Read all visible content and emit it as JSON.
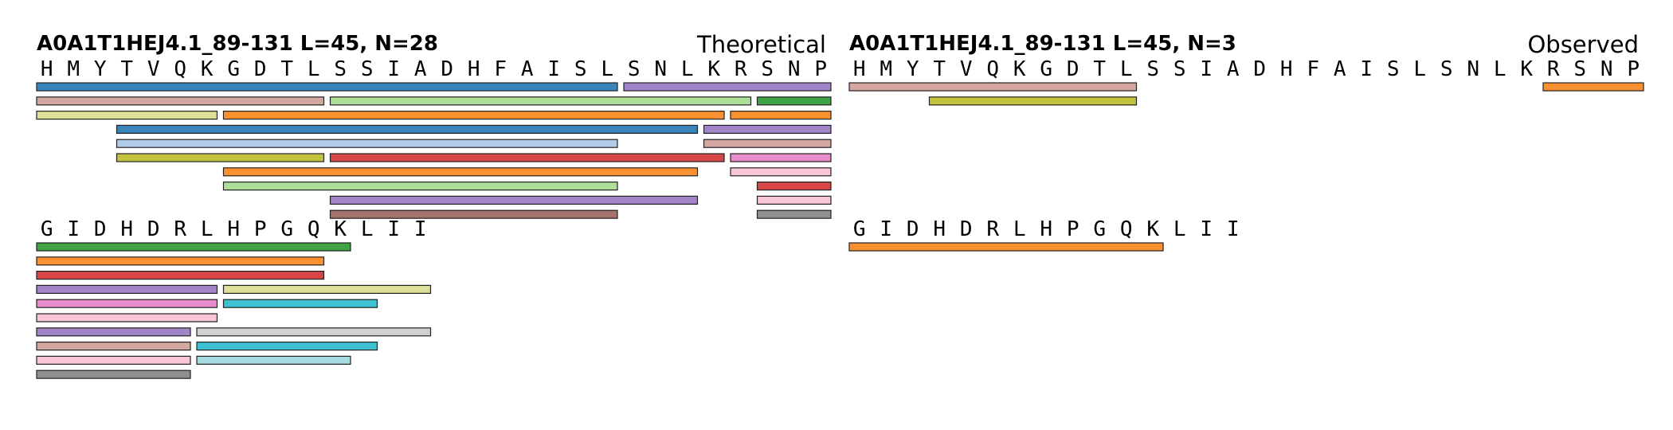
{
  "panels": [
    {
      "id": "theoretical",
      "title": "A0A1T1HEJ4.1_89-131  L=45, N=28",
      "label": "Theoretical",
      "rows": [
        {
          "residues": [
            "H",
            "M",
            "Y",
            "T",
            "V",
            "Q",
            "K",
            "G",
            "D",
            "T",
            "L",
            "S",
            "S",
            "I",
            "A",
            "D",
            "H",
            "F",
            "A",
            "I",
            "S",
            "L",
            "S",
            "N",
            "L",
            "K",
            "R",
            "S",
            "N",
            "P"
          ],
          "peptides": [
            {
              "start": 0,
              "end": 21,
              "lane": 0,
              "color": "#3a84bc"
            },
            {
              "start": 22,
              "end": 29,
              "lane": 0,
              "color": "#a285c8"
            },
            {
              "start": 0,
              "end": 10,
              "lane": 1,
              "color": "#d4a8a0"
            },
            {
              "start": 11,
              "end": 26,
              "lane": 1,
              "color": "#aedf98"
            },
            {
              "start": 27,
              "end": 29,
              "lane": 1,
              "color": "#3fa244"
            },
            {
              "start": 0,
              "end": 6,
              "lane": 2,
              "color": "#dde099"
            },
            {
              "start": 7,
              "end": 25,
              "lane": 2,
              "color": "#f99130"
            },
            {
              "start": 26,
              "end": 29,
              "lane": 2,
              "color": "#f99130"
            },
            {
              "start": 3,
              "end": 24,
              "lane": 3,
              "color": "#3a84bc"
            },
            {
              "start": 25,
              "end": 29,
              "lane": 3,
              "color": "#a285c8"
            },
            {
              "start": 3,
              "end": 21,
              "lane": 4,
              "color": "#b2cbe9"
            },
            {
              "start": 25,
              "end": 29,
              "lane": 4,
              "color": "#d4a8a0"
            },
            {
              "start": 3,
              "end": 10,
              "lane": 5,
              "color": "#c2c23c"
            },
            {
              "start": 11,
              "end": 25,
              "lane": 5,
              "color": "#d64646"
            },
            {
              "start": 26,
              "end": 29,
              "lane": 5,
              "color": "#e98ccc"
            },
            {
              "start": 7,
              "end": 24,
              "lane": 6,
              "color": "#f99130"
            },
            {
              "start": 26,
              "end": 29,
              "lane": 6,
              "color": "#f8c5d9"
            },
            {
              "start": 7,
              "end": 21,
              "lane": 7,
              "color": "#aedf98"
            },
            {
              "start": 27,
              "end": 29,
              "lane": 7,
              "color": "#d64646"
            },
            {
              "start": 11,
              "end": 24,
              "lane": 8,
              "color": "#a285c8"
            },
            {
              "start": 27,
              "end": 29,
              "lane": 8,
              "color": "#f8c5d9"
            },
            {
              "start": 11,
              "end": 21,
              "lane": 9,
              "color": "#a5736b"
            },
            {
              "start": 27,
              "end": 29,
              "lane": 9,
              "color": "#8f8f8f"
            }
          ]
        },
        {
          "residues": [
            "G",
            "I",
            "D",
            "H",
            "D",
            "R",
            "L",
            "H",
            "P",
            "G",
            "Q",
            "K",
            "L",
            "I",
            "I"
          ],
          "peptides": [
            {
              "start": 0,
              "end": 11,
              "lane": 0,
              "color": "#3fa244"
            },
            {
              "start": 0,
              "end": 10,
              "lane": 1,
              "color": "#f99130"
            },
            {
              "start": 0,
              "end": 10,
              "lane": 2,
              "color": "#d64646"
            },
            {
              "start": 0,
              "end": 6,
              "lane": 3,
              "color": "#a285c8"
            },
            {
              "start": 7,
              "end": 14,
              "lane": 3,
              "color": "#dde099"
            },
            {
              "start": 0,
              "end": 6,
              "lane": 4,
              "color": "#e98ccc"
            },
            {
              "start": 7,
              "end": 12,
              "lane": 4,
              "color": "#3ec2d1"
            },
            {
              "start": 0,
              "end": 6,
              "lane": 5,
              "color": "#f8c5d9"
            },
            {
              "start": 0,
              "end": 5,
              "lane": 6,
              "color": "#a285c8"
            },
            {
              "start": 6,
              "end": 14,
              "lane": 6,
              "color": "#d0d0d0"
            },
            {
              "start": 0,
              "end": 5,
              "lane": 7,
              "color": "#d4a8a0"
            },
            {
              "start": 6,
              "end": 12,
              "lane": 7,
              "color": "#3ec2d1"
            },
            {
              "start": 0,
              "end": 5,
              "lane": 8,
              "color": "#f8c5d9"
            },
            {
              "start": 6,
              "end": 11,
              "lane": 8,
              "color": "#a8dce3"
            },
            {
              "start": 0,
              "end": 5,
              "lane": 9,
              "color": "#8f8f8f"
            }
          ]
        }
      ]
    },
    {
      "id": "observed",
      "title": "A0A1T1HEJ4.1_89-131  L=45, N=3",
      "label": "Observed",
      "rows": [
        {
          "residues": [
            "H",
            "M",
            "Y",
            "T",
            "V",
            "Q",
            "K",
            "G",
            "D",
            "T",
            "L",
            "S",
            "S",
            "I",
            "A",
            "D",
            "H",
            "F",
            "A",
            "I",
            "S",
            "L",
            "S",
            "N",
            "L",
            "K",
            "R",
            "S",
            "N",
            "P"
          ],
          "peptides": [
            {
              "start": 0,
              "end": 10,
              "lane": 0,
              "color": "#d4a8a0"
            },
            {
              "start": 26,
              "end": 29,
              "lane": 0,
              "color": "#f99130"
            },
            {
              "start": 3,
              "end": 10,
              "lane": 1,
              "color": "#c2c23c"
            }
          ]
        },
        {
          "residues": [
            "G",
            "I",
            "D",
            "H",
            "D",
            "R",
            "L",
            "H",
            "P",
            "G",
            "Q",
            "K",
            "L",
            "I",
            "I"
          ],
          "peptides": [
            {
              "start": 0,
              "end": 11,
              "lane": 0,
              "color": "#f99130"
            }
          ]
        }
      ]
    }
  ]
}
